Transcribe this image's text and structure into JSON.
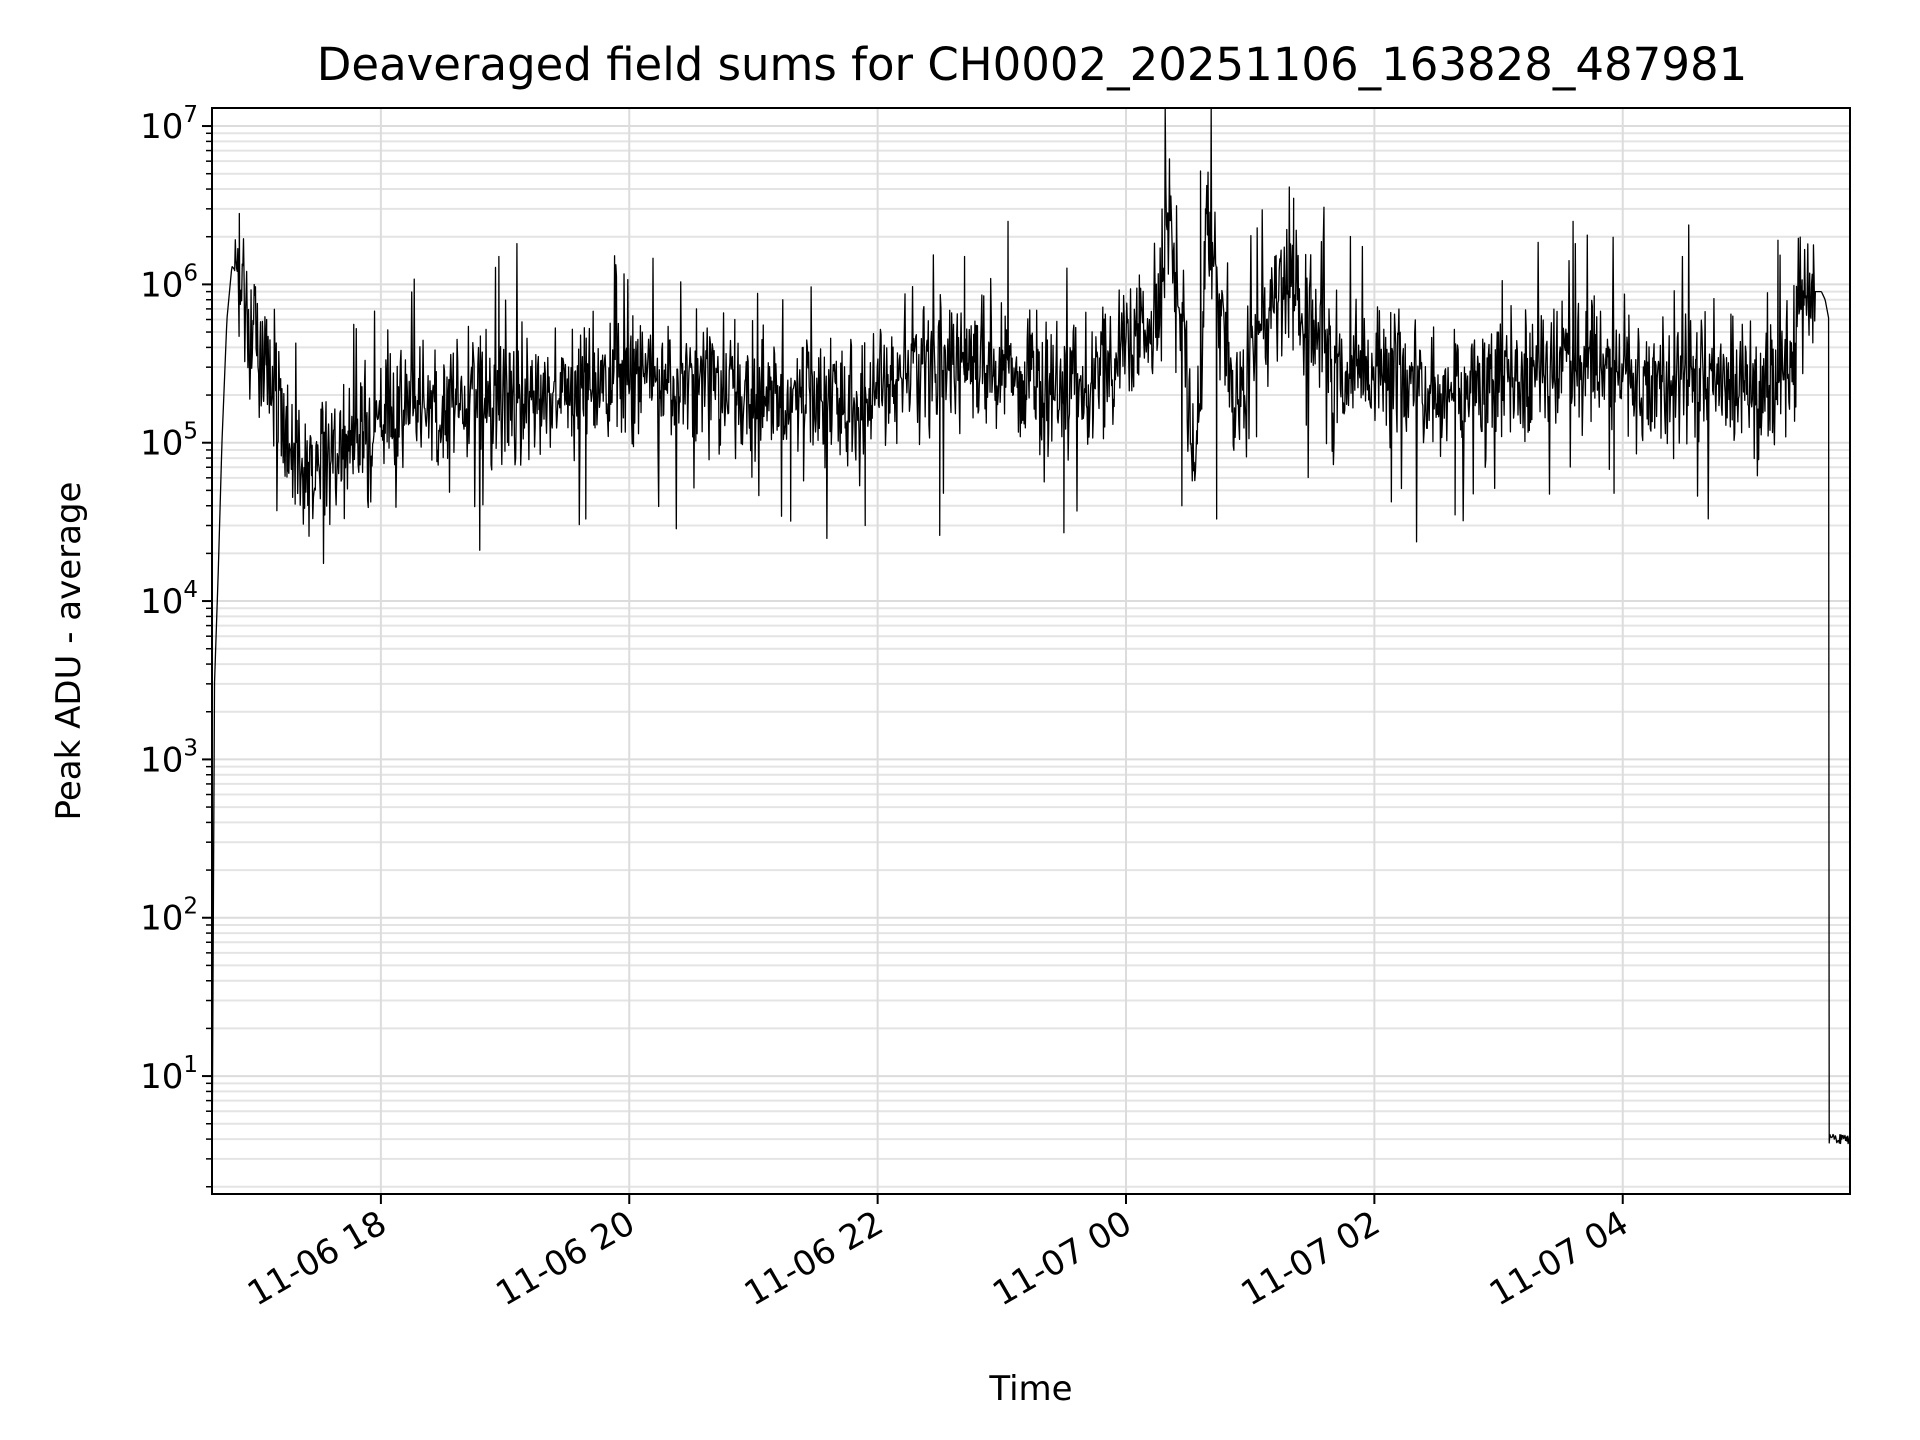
{
  "chart_data": {
    "type": "line",
    "title": "Deaveraged field sums for CH0002_20251106_163828_487981",
    "xlabel": "Time",
    "ylabel": "Peak ADU - average",
    "yscale": "log",
    "ylim": [
      1.8,
      13000000
    ],
    "xlim_hours": [
      16.64,
      29.83
    ],
    "grid": true,
    "x_ticks": [
      {
        "hour": 18,
        "label": "11-06 18"
      },
      {
        "hour": 20,
        "label": "11-06 20"
      },
      {
        "hour": 22,
        "label": "11-06 22"
      },
      {
        "hour": 24,
        "label": "11-07 00"
      },
      {
        "hour": 26,
        "label": "11-07 02"
      },
      {
        "hour": 28,
        "label": "11-07 04"
      }
    ],
    "y_ticks": [
      {
        "value": 10,
        "base": "10",
        "exp": "1"
      },
      {
        "value": 100,
        "base": "10",
        "exp": "2"
      },
      {
        "value": 1000,
        "base": "10",
        "exp": "3"
      },
      {
        "value": 10000,
        "base": "10",
        "exp": "4"
      },
      {
        "value": 100000,
        "base": "10",
        "exp": "5"
      },
      {
        "value": 1000000,
        "base": "10",
        "exp": "6"
      },
      {
        "value": 10000000,
        "base": "10",
        "exp": "7"
      }
    ],
    "series": [
      {
        "name": "CH0002_20251106_163828_487981",
        "color": "#000000",
        "x_hours": [
          16.64,
          16.66,
          16.69,
          16.72,
          16.76,
          16.8,
          16.84,
          16.88,
          16.95,
          17.05,
          17.15,
          17.25,
          17.35,
          17.5,
          17.6,
          17.7,
          17.85,
          18.0,
          18.25,
          18.5,
          18.75,
          19.0,
          19.25,
          19.5,
          19.75,
          20.0,
          20.25,
          20.5,
          20.75,
          21.0,
          21.25,
          21.5,
          21.75,
          22.0,
          22.25,
          22.5,
          22.75,
          23.0,
          23.25,
          23.5,
          23.75,
          24.0,
          24.15,
          24.25,
          24.3,
          24.35,
          24.4,
          24.5,
          24.55,
          24.6,
          24.65,
          24.7,
          24.75,
          24.8,
          24.9,
          25.0,
          25.1,
          25.2,
          25.3,
          25.4,
          25.6,
          25.75,
          26.0,
          26.25,
          26.5,
          26.75,
          27.0,
          27.25,
          27.5,
          27.75,
          28.0,
          28.25,
          28.5,
          28.75,
          29.0,
          29.2,
          29.35,
          29.45,
          29.5,
          29.55,
          29.6,
          29.63,
          29.66,
          29.7,
          29.83
        ],
        "y": [
          2,
          3000,
          15000,
          100000,
          600000,
          1300000,
          1200000,
          1000000,
          500000,
          300000,
          200000,
          100000,
          80000,
          70000,
          90000,
          100000,
          120000,
          150000,
          160000,
          170000,
          200000,
          200000,
          210000,
          230000,
          250000,
          250000,
          270000,
          260000,
          240000,
          200000,
          180000,
          170000,
          180000,
          220000,
          260000,
          300000,
          330000,
          280000,
          250000,
          200000,
          250000,
          400000,
          500000,
          700000,
          1500000,
          3000000,
          1500000,
          200000,
          100000,
          200000,
          2000000,
          1500000,
          800000,
          300000,
          200000,
          300000,
          500000,
          900000,
          1000000,
          700000,
          400000,
          300000,
          300000,
          250000,
          200000,
          220000,
          250000,
          270000,
          300000,
          300000,
          280000,
          270000,
          250000,
          250000,
          200000,
          200000,
          300000,
          700000,
          850000,
          900000,
          900000,
          800000,
          600000,
          4,
          4
        ],
        "noise_peaks": [
          {
            "hour": 16.86,
            "value": 2800000
          },
          {
            "hour": 17.08,
            "value": 600000
          },
          {
            "hour": 18.95,
            "value": 1500000
          },
          {
            "hour": 20.85,
            "value": 600000
          },
          {
            "hour": 21.4,
            "value": 400000
          },
          {
            "hour": 22.7,
            "value": 1500000
          },
          {
            "hour": 23.05,
            "value": 2500000
          },
          {
            "hour": 24.35,
            "value": 6200000
          },
          {
            "hour": 24.6,
            "value": 5200000
          },
          {
            "hour": 25.35,
            "value": 3500000
          },
          {
            "hour": 27.6,
            "value": 2500000
          },
          {
            "hour": 29.25,
            "value": 1900000
          }
        ],
        "noise_dips": [
          {
            "hour": 17.45,
            "value": 40000
          },
          {
            "hour": 19.65,
            "value": 33000
          },
          {
            "hour": 21.3,
            "value": 32000
          },
          {
            "hour": 21.9,
            "value": 30000
          },
          {
            "hour": 22.5,
            "value": 26000
          },
          {
            "hour": 23.5,
            "value": 27000
          },
          {
            "hour": 24.45,
            "value": 40000
          },
          {
            "hour": 24.73,
            "value": 33000
          },
          {
            "hour": 26.65,
            "value": 35000
          },
          {
            "hour": 27.93,
            "value": 48000
          }
        ]
      }
    ]
  }
}
